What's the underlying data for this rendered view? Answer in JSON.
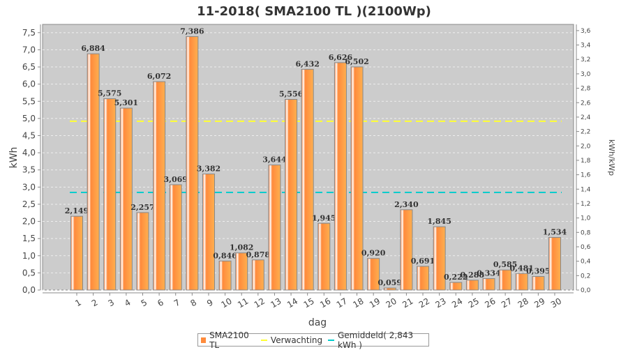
{
  "chart_data": {
    "type": "bar",
    "title": "11-2018( SMA2100 TL )(2100Wp)",
    "xlabel": "dag",
    "ylabel": "kWh",
    "ylabel_right": "kWh/kWp",
    "categories": [
      "1",
      "2",
      "3",
      "4",
      "5",
      "6",
      "7",
      "8",
      "9",
      "10",
      "11",
      "12",
      "13",
      "14",
      "15",
      "16",
      "17",
      "18",
      "19",
      "20",
      "21",
      "22",
      "23",
      "24",
      "25",
      "26",
      "27",
      "28",
      "29",
      "30"
    ],
    "series": [
      {
        "name": "SMA2100 TL",
        "values": [
          2.149,
          6.884,
          5.575,
          5.301,
          2.257,
          6.072,
          3.069,
          7.386,
          3.382,
          0.846,
          1.082,
          0.878,
          3.644,
          5.556,
          6.432,
          1.945,
          6.626,
          6.502,
          0.92,
          0.059,
          2.34,
          0.691,
          1.845,
          0.222,
          0.288,
          0.334,
          0.585,
          0.481,
          0.395,
          1.534
        ],
        "color": "#ff8c3c"
      }
    ],
    "value_labels": [
      "2,149",
      "6,884",
      "5,575",
      "5,301",
      "2,257",
      "6,072",
      "3,069",
      "7,386",
      "3,382",
      "0,846",
      "1,082",
      "0,878",
      "3,644",
      "5,556",
      "6,432",
      "1,945",
      "6,626",
      "6,502",
      "0,920",
      "0,059",
      "2,340",
      "0,691",
      "1,845",
      "0,222",
      "0,288",
      "0,334",
      "0,585",
      "0,481",
      "0,395",
      "1,534"
    ],
    "reference_lines": [
      {
        "name": "Verwachting",
        "value": 4.92,
        "color": "#ffff33"
      },
      {
        "name": "Gemiddeld( 2,843 kWh )",
        "value": 2.843,
        "color": "#00cccc"
      }
    ],
    "ylim": [
      0,
      7.74
    ],
    "yticks": [
      "0,0",
      "0,5",
      "1,0",
      "1,5",
      "2,0",
      "2,5",
      "3,0",
      "3,5",
      "4,0",
      "4,5",
      "5,0",
      "5,5",
      "6,0",
      "6,5",
      "7,0",
      "7,5"
    ],
    "ylim_right": [
      0,
      3.686
    ],
    "yticks_right": [
      "0,0",
      "0,2",
      "0,4",
      "0,6",
      "0,8",
      "1,0",
      "1,2",
      "1,4",
      "1,6",
      "1,8",
      "2,0",
      "2,2",
      "2,4",
      "2,6",
      "2,8",
      "3,0",
      "3,2",
      "3,4",
      "3,6"
    ],
    "grid": true,
    "legend_position": "bottom"
  },
  "legend": {
    "items": [
      "SMA2100 TL",
      "Verwachting",
      "Gemiddeld( 2,843 kWh )"
    ]
  }
}
